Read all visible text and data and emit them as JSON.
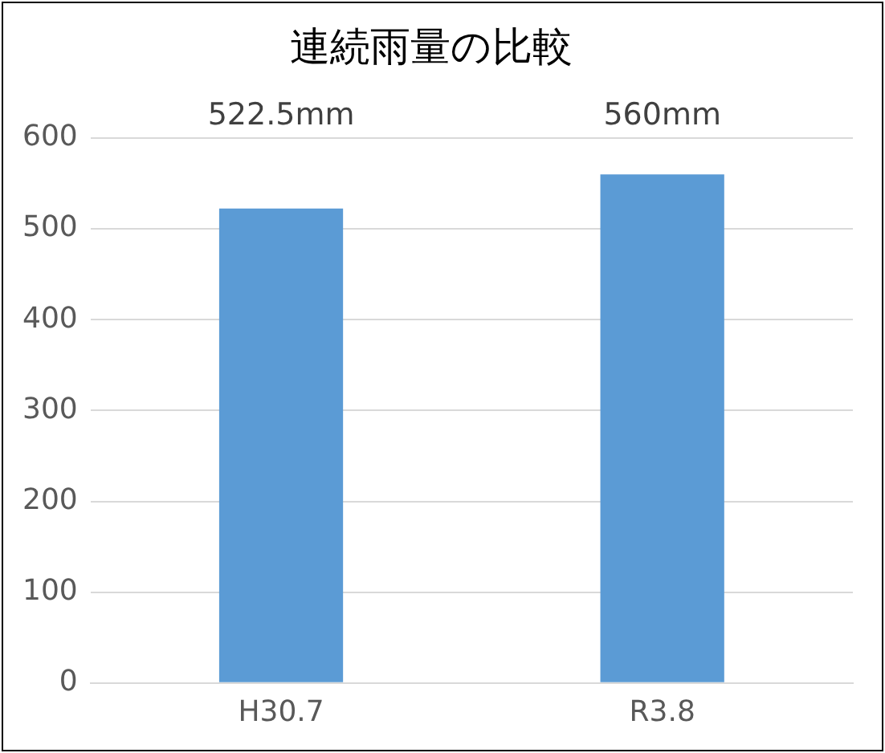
{
  "chart_data": {
    "type": "bar",
    "title": "連続雨量の比較",
    "categories": [
      "H30.7",
      "R3.8"
    ],
    "values": [
      522.5,
      560
    ],
    "color": "#5b9bd5",
    "value_labels": [
      "522.5mm",
      "560mm"
    ],
    "ylim": [
      0,
      600
    ],
    "yticks": [
      0,
      100,
      200,
      300,
      400,
      500,
      600
    ],
    "grid": "y"
  }
}
